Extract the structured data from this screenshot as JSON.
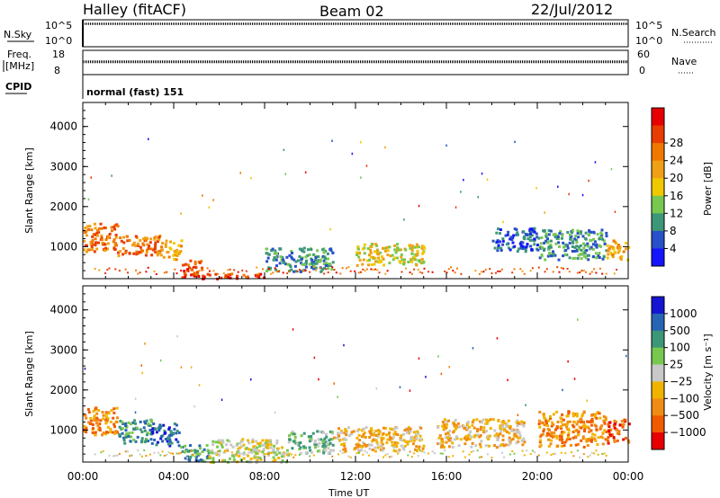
{
  "header": {
    "station": "Halley (fitACF)",
    "beam": "Beam 02",
    "date": "22/Jul/2012"
  },
  "top_panels": {
    "nsky_label": "N.Sky",
    "nsearch_label": "N.Search",
    "noise_ticks": [
      "10^5",
      "10^0"
    ],
    "freq_label_1": "Freq.",
    "freq_label_2": "[MHz]",
    "freq_ticks": [
      "18",
      "8"
    ],
    "nave_label": "Nave",
    "nave_ticks": [
      "60",
      "0"
    ],
    "cpid_label": "CPID",
    "cpid_text": "normal (fast) 151",
    "noise_level_fraction": 0.85,
    "freq_level_fraction": 0.25,
    "nave_level_fraction": 0.2
  },
  "x_axis": {
    "label": "Time UT",
    "ticks": [
      "00:00",
      "04:00",
      "08:00",
      "12:00",
      "16:00",
      "20:00",
      "00:00"
    ],
    "range_hours": [
      0,
      24
    ]
  },
  "colors": {
    "power_scale": [
      "#1414ff",
      "#2850c8",
      "#3c9678",
      "#78c850",
      "#f0c800",
      "#f0a014",
      "#f07800",
      "#e83c00",
      "#e80000"
    ],
    "velocity_scale": [
      "#1414d2",
      "#2864b4",
      "#3c9678",
      "#78c850",
      "#c8c8c8",
      "#f0b400",
      "#f08c14",
      "#f05a00",
      "#e80000"
    ]
  },
  "chart_data": [
    {
      "type": "heatmap",
      "name": "power",
      "ylabel": "Slant Range [km]",
      "yticks": [
        1000,
        2000,
        3000,
        4000
      ],
      "ylim": [
        200,
        4600
      ],
      "xlim": [
        0,
        24
      ],
      "colorbar_label": "Power [dB]",
      "colorbar_ticks": [
        "4",
        "8",
        "12",
        "16",
        "20",
        "24",
        "28"
      ],
      "regions": [
        {
          "t0": 0.0,
          "t1": 1.5,
          "r0": 900,
          "r1": 1600,
          "level": 6
        },
        {
          "t0": 1.5,
          "t1": 3.5,
          "r0": 800,
          "r1": 1300,
          "level": 6
        },
        {
          "t0": 3.5,
          "t1": 4.3,
          "r0": 700,
          "r1": 1200,
          "level": 5
        },
        {
          "t0": 4.3,
          "t1": 5.2,
          "r0": 250,
          "r1": 700,
          "level": 7
        },
        {
          "t0": 5.2,
          "t1": 8.0,
          "r0": 220,
          "r1": 350,
          "level": 7
        },
        {
          "t0": 8.0,
          "t1": 11.0,
          "r0": 400,
          "r1": 1000,
          "level": 2
        },
        {
          "t0": 12.0,
          "t1": 15.0,
          "r0": 550,
          "r1": 1100,
          "level": 4
        },
        {
          "t0": 18.0,
          "t1": 20.0,
          "r0": 900,
          "r1": 1500,
          "level": 1
        },
        {
          "t0": 20.0,
          "t1": 23.0,
          "r0": 700,
          "r1": 1450,
          "level": 2
        },
        {
          "t0": 23.0,
          "t1": 24.0,
          "r0": 700,
          "r1": 1200,
          "level": 5
        }
      ]
    },
    {
      "type": "heatmap",
      "name": "velocity",
      "ylabel": "Slant Range [km]",
      "yticks": [
        1000,
        2000,
        3000,
        4000
      ],
      "ylim": [
        200,
        4600
      ],
      "xlim": [
        0,
        24
      ],
      "colorbar_label": "Velocity [m s⁻¹]",
      "colorbar_ticks": [
        "1000",
        "500",
        "100",
        "25",
        "−25",
        "−100",
        "−500",
        "−1000"
      ],
      "regions": [
        {
          "t0": 0.0,
          "t1": 1.5,
          "r0": 900,
          "r1": 1600,
          "level": 6
        },
        {
          "t0": 1.5,
          "t1": 3.0,
          "r0": 700,
          "r1": 1300,
          "level": 2
        },
        {
          "t0": 3.0,
          "t1": 4.2,
          "r0": 600,
          "r1": 1200,
          "level": 1
        },
        {
          "t0": 4.2,
          "t1": 5.5,
          "r0": 250,
          "r1": 650,
          "level": 2
        },
        {
          "t0": 5.5,
          "t1": 9.0,
          "r0": 220,
          "r1": 800,
          "level": 4
        },
        {
          "t0": 9.0,
          "t1": 11.0,
          "r0": 450,
          "r1": 1000,
          "level": 3
        },
        {
          "t0": 11.0,
          "t1": 15.0,
          "r0": 500,
          "r1": 1100,
          "level": 5
        },
        {
          "t0": 15.5,
          "t1": 19.5,
          "r0": 600,
          "r1": 1300,
          "level": 5
        },
        {
          "t0": 20.0,
          "t1": 23.0,
          "r0": 600,
          "r1": 1500,
          "level": 6
        },
        {
          "t0": 23.0,
          "t1": 24.0,
          "r0": 700,
          "r1": 1300,
          "level": 7
        }
      ]
    }
  ]
}
